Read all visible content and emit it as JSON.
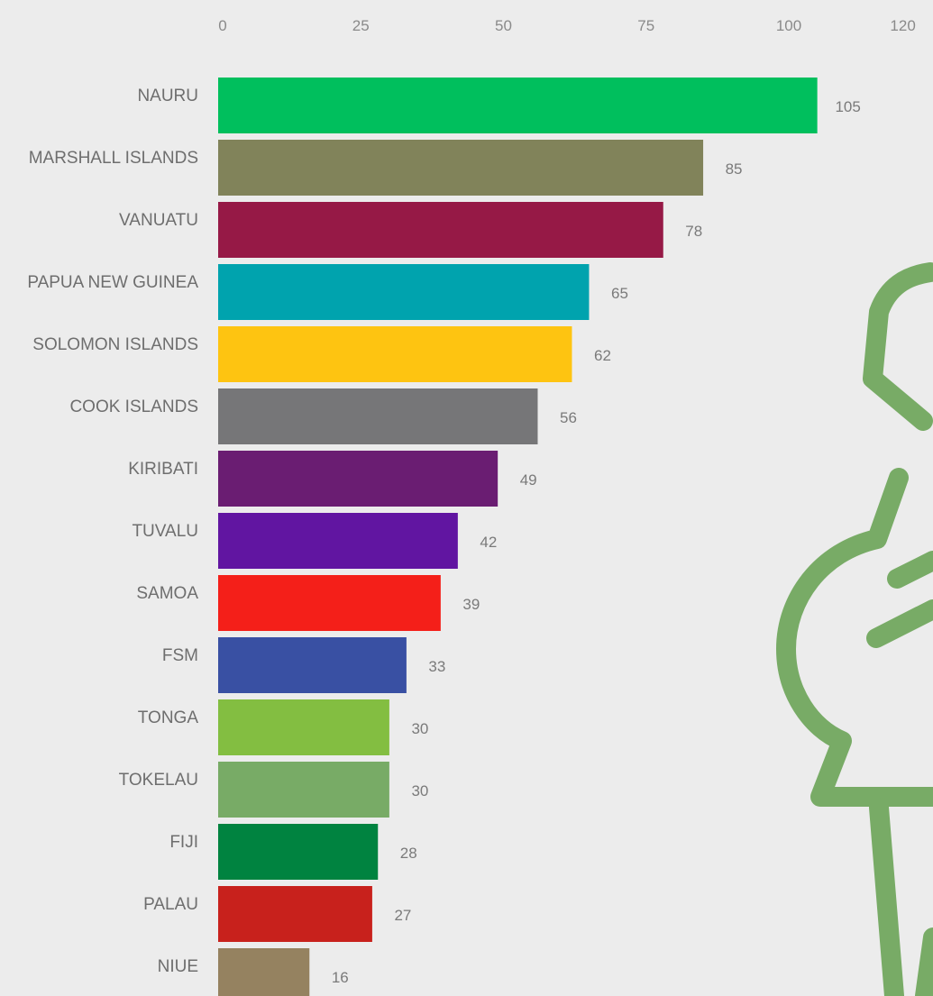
{
  "chart_data": {
    "type": "bar",
    "orientation": "horizontal",
    "categories": [
      "NAURU",
      "MARSHALL ISLANDS",
      "VANUATU",
      "PAPUA NEW GUINEA",
      "SOLOMON ISLANDS",
      "COOK ISLANDS",
      "KIRIBATI",
      "TUVALU",
      "SAMOA",
      "FSM",
      "TONGA",
      "TOKELAU",
      "FIJI",
      "PALAU",
      "NIUE"
    ],
    "values": [
      105,
      85,
      78,
      65,
      62,
      56,
      49,
      42,
      39,
      33,
      30,
      30,
      28,
      27,
      16
    ],
    "value_labels": [
      "105",
      "85",
      "78",
      "65",
      "62",
      "56",
      "49",
      "42",
      "39",
      "33",
      "30",
      "30",
      "28",
      "27",
      "16"
    ],
    "colors": [
      "#00bf5d",
      "#81835a",
      "#961946",
      "#00a3ae",
      "#fec411",
      "#767678",
      "#6a1d72",
      "#6115a1",
      "#f41f19",
      "#3950a3",
      "#83be41",
      "#78ab66",
      "#008340",
      "#c8211c",
      "#958260"
    ],
    "x_ticks": [
      0,
      25,
      50,
      75,
      100,
      120
    ],
    "x_tick_labels": [
      "0",
      "25",
      "50",
      "75",
      "100",
      "120"
    ],
    "xlim": [
      0,
      120
    ],
    "axis_position": "top",
    "grid": false,
    "legend": "none",
    "title": "",
    "xlabel": "",
    "ylabel": "",
    "background_color": "#ececec",
    "decoration_color": "#78ab66"
  },
  "decoration": {
    "icon": "gender-symbols-outline-icon"
  }
}
